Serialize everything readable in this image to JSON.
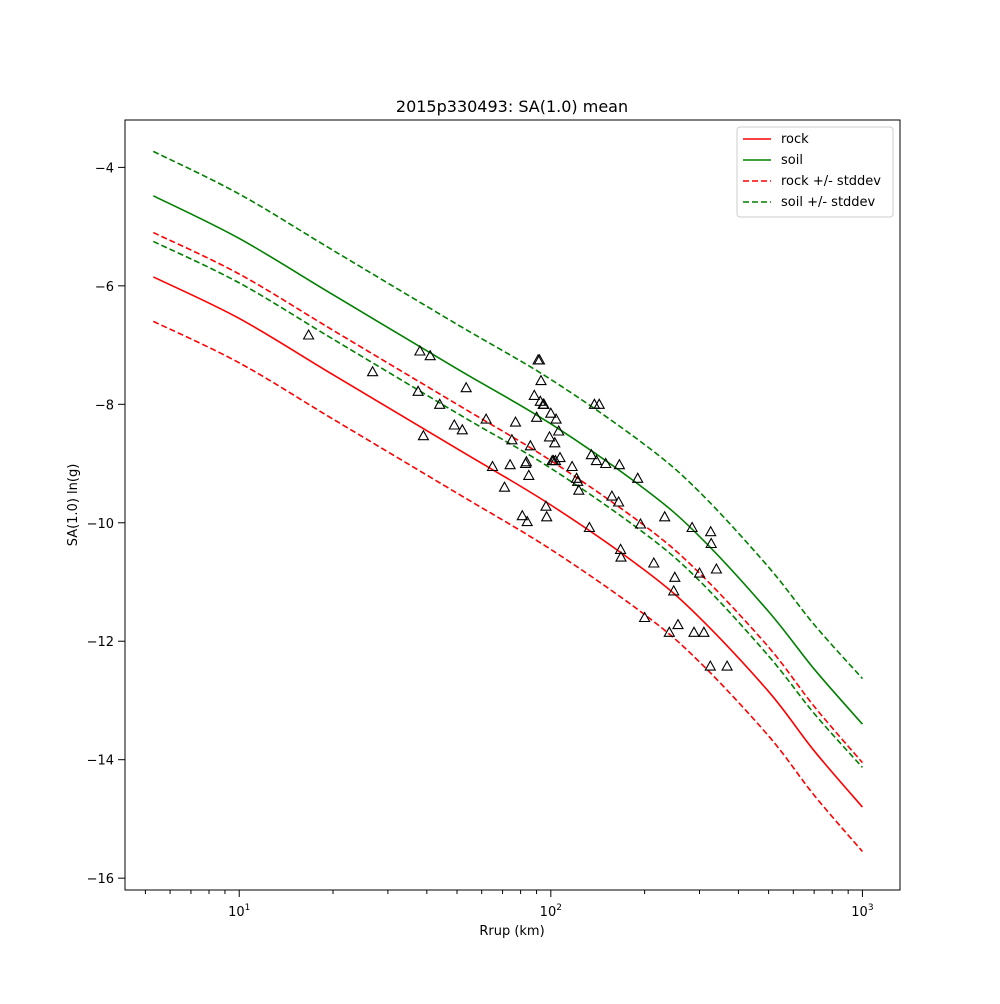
{
  "chart_data": {
    "type": "scatter",
    "title": "2015p330493: SA(1.0) mean",
    "xlabel": "Rrup (km)",
    "ylabel": "SA(1.0) ln(g)",
    "xscale": "log",
    "xlim": [
      4.3,
      1320
    ],
    "ylim": [
      -16.2,
      -3.2
    ],
    "grid": false,
    "legend_position": "top-right",
    "x_ticks": [
      {
        "value": 10,
        "base": "10",
        "exp": "1"
      },
      {
        "value": 100,
        "base": "10",
        "exp": "2"
      },
      {
        "value": 1000,
        "base": "10",
        "exp": "3"
      }
    ],
    "y_ticks": [
      {
        "value": -4,
        "label": "−4"
      },
      {
        "value": -6,
        "label": "−6"
      },
      {
        "value": -8,
        "label": "−8"
      },
      {
        "value": -10,
        "label": "−10"
      },
      {
        "value": -12,
        "label": "−12"
      },
      {
        "value": -14,
        "label": "−14"
      },
      {
        "value": -16,
        "label": "−16"
      }
    ],
    "series": [
      {
        "name": "rock",
        "color": "#ff0000",
        "style": "solid",
        "x": [
          5.3,
          10,
          20,
          50,
          100,
          200,
          300,
          500,
          700,
          1000
        ],
        "y": [
          -5.85,
          -6.55,
          -7.5,
          -8.75,
          -9.7,
          -10.8,
          -11.6,
          -12.85,
          -13.85,
          -14.8
        ]
      },
      {
        "name": "soil",
        "color": "#008000",
        "style": "solid",
        "x": [
          5.3,
          10,
          20,
          50,
          100,
          200,
          300,
          500,
          700,
          1000
        ],
        "y": [
          -4.48,
          -5.2,
          -6.15,
          -7.4,
          -8.33,
          -9.43,
          -10.23,
          -11.5,
          -12.47,
          -13.4
        ]
      },
      {
        "name": "rock +/- stddev",
        "color": "#ff0000",
        "style": "dashed",
        "x": [
          5.3,
          10,
          20,
          50,
          100,
          200,
          300,
          500,
          700,
          1000
        ],
        "y": [
          -5.1,
          -5.8,
          -6.75,
          -8.0,
          -8.95,
          -10.05,
          -10.85,
          -12.1,
          -13.1,
          -14.05
        ]
      },
      {
        "name": "rock +/- stddev",
        "color": "#ff0000",
        "style": "dashed",
        "legend": false,
        "x": [
          5.3,
          10,
          20,
          50,
          100,
          200,
          300,
          500,
          700,
          1000
        ],
        "y": [
          -6.6,
          -7.3,
          -8.25,
          -9.5,
          -10.45,
          -11.55,
          -12.35,
          -13.6,
          -14.6,
          -15.55
        ]
      },
      {
        "name": "soil +/- stddev",
        "color": "#008000",
        "style": "dashed",
        "x": [
          5.3,
          10,
          20,
          50,
          100,
          200,
          300,
          500,
          700,
          1000
        ],
        "y": [
          -3.73,
          -4.45,
          -5.4,
          -6.65,
          -7.58,
          -8.68,
          -9.48,
          -10.75,
          -11.72,
          -12.63
        ]
      },
      {
        "name": "soil +/- stddev",
        "color": "#008000",
        "style": "dashed",
        "legend": false,
        "x": [
          5.3,
          10,
          20,
          50,
          100,
          200,
          300,
          500,
          700,
          1000
        ],
        "y": [
          -5.25,
          -5.95,
          -6.9,
          -8.15,
          -9.08,
          -10.18,
          -10.98,
          -12.25,
          -13.22,
          -14.13
        ]
      }
    ],
    "points": {
      "marker": "triangle",
      "x": [
        16.7,
        26.8,
        37.5,
        38.0,
        39.0,
        41.0,
        44.0,
        49.0,
        52.0,
        53.5,
        62.0,
        65.0,
        71.0,
        74.0,
        75.0,
        77.0,
        81.0,
        83.0,
        83.5,
        84.0,
        85.0,
        86.0,
        88.5,
        90.0,
        91.0,
        92.0,
        92.5,
        93.0,
        94.5,
        95.0,
        96.5,
        97.0,
        99.0,
        100.0,
        101.0,
        102.0,
        103.0,
        103.5,
        104.0,
        106.0,
        107.0,
        117.0,
        121.0,
        122.0,
        123.0,
        133.0,
        135.0,
        138.0,
        140.0,
        143.0,
        150.0,
        157.0,
        165.0,
        166.0,
        167.5,
        168.0,
        190.0,
        194.0,
        200.0,
        214.0,
        232.0,
        240.0,
        248.0,
        250.0,
        256.0,
        284.0,
        288.0,
        300.0,
        310.0,
        325.0,
        326.0,
        327.0,
        340.0,
        368.0
      ],
      "y": [
        -6.83,
        -7.45,
        -7.78,
        -7.1,
        -8.53,
        -7.18,
        -8.0,
        -8.35,
        -8.43,
        -7.72,
        -8.25,
        -9.05,
        -9.4,
        -9.02,
        -8.6,
        -8.3,
        -9.88,
        -9.0,
        -8.97,
        -9.98,
        -9.2,
        -8.7,
        -7.85,
        -8.22,
        -7.25,
        -7.25,
        -7.95,
        -7.6,
        -8.0,
        -8.0,
        -9.72,
        -9.9,
        -8.55,
        -8.15,
        -8.95,
        -8.95,
        -8.65,
        -8.95,
        -8.25,
        -8.45,
        -8.9,
        -9.05,
        -9.25,
        -9.3,
        -9.45,
        -10.08,
        -8.85,
        -8.0,
        -8.95,
        -8.0,
        -9.0,
        -9.55,
        -9.65,
        -9.02,
        -10.45,
        -10.58,
        -9.25,
        -10.02,
        -11.6,
        -10.68,
        -9.9,
        -11.85,
        -11.15,
        -10.92,
        -11.72,
        -10.08,
        -11.85,
        -10.85,
        -11.85,
        -12.42,
        -10.15,
        -10.35,
        -10.78,
        -12.42
      ]
    }
  }
}
